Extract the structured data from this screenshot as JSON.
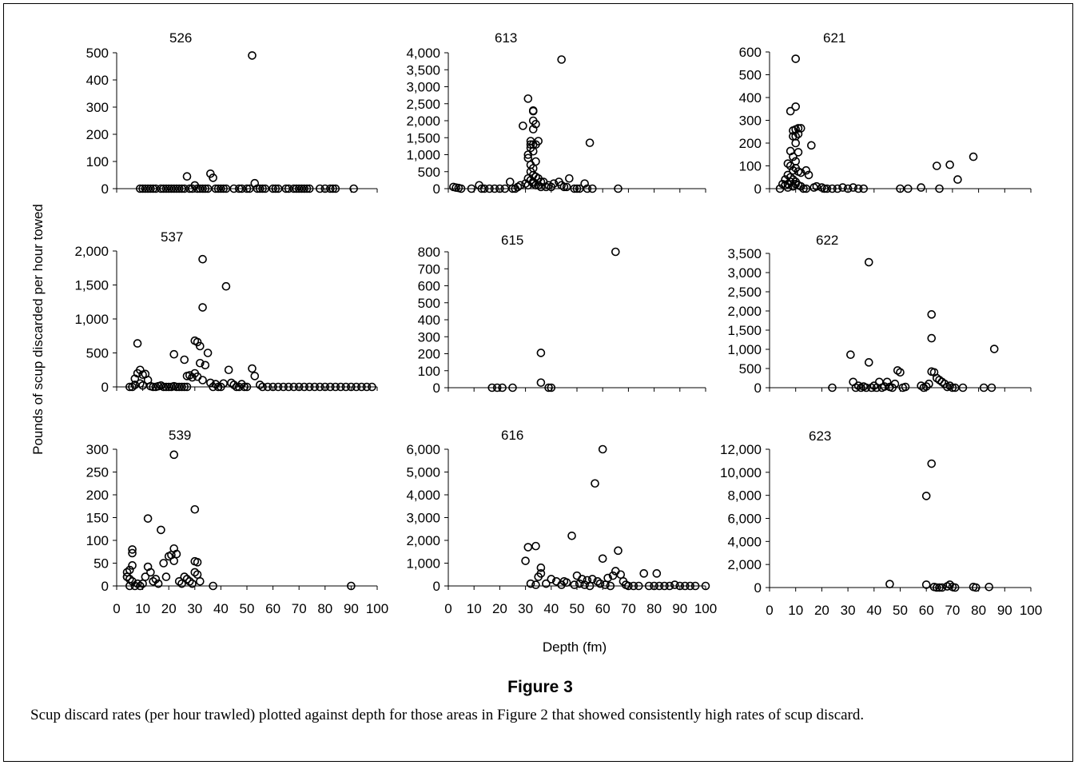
{
  "figure": {
    "ylabel": "Pounds of scup discarded per hour towed",
    "xlabel": "Depth (fm)",
    "title": "Figure 3",
    "caption": "Scup discard rates (per hour trawled) plotted against depth for those areas in Figure 2 that showed consistently high rates of scup discard."
  },
  "chart_data": [
    {
      "type": "scatter",
      "title": "526",
      "xlim": [
        0,
        100
      ],
      "ylim": [
        0,
        500
      ],
      "xticks": [
        0,
        10,
        20,
        30,
        40,
        50,
        60,
        70,
        80,
        90,
        100
      ],
      "yticks": [
        0,
        100,
        200,
        300,
        400,
        500
      ],
      "x": [
        52,
        27,
        36,
        37,
        30,
        53,
        9,
        10,
        11,
        12,
        13,
        14,
        15,
        17,
        18,
        19,
        20,
        21,
        22,
        23,
        24,
        25,
        26,
        28,
        29,
        31,
        32,
        33,
        34,
        35,
        38,
        39,
        40,
        41,
        42,
        45,
        47,
        48,
        50,
        51,
        54,
        55,
        56,
        57,
        60,
        61,
        62,
        65,
        66,
        68,
        69,
        70,
        71,
        72,
        73,
        74,
        78,
        80,
        82,
        83,
        84,
        91
      ],
      "y": [
        490,
        45,
        55,
        40,
        12,
        20,
        0,
        0,
        0,
        0,
        0,
        0,
        0,
        0,
        0,
        0,
        0,
        0,
        0,
        0,
        0,
        0,
        0,
        0,
        0,
        0,
        0,
        0,
        0,
        0,
        0,
        0,
        0,
        0,
        0,
        0,
        0,
        0,
        0,
        0,
        0,
        0,
        0,
        0,
        0,
        0,
        0,
        0,
        0,
        0,
        0,
        0,
        0,
        0,
        0,
        0,
        0,
        0,
        0,
        0,
        0,
        0
      ]
    },
    {
      "type": "scatter",
      "title": "613",
      "xlim": [
        0,
        100
      ],
      "ylim": [
        0,
        4000
      ],
      "xticks": [
        0,
        10,
        20,
        30,
        40,
        50,
        60,
        70,
        80,
        90,
        100
      ],
      "yticks": [
        0,
        500,
        1000,
        1500,
        2000,
        2500,
        3000,
        3500,
        4000
      ],
      "x": [
        44,
        31,
        33,
        33,
        33,
        33,
        29,
        32,
        34,
        33,
        35,
        32,
        32,
        34,
        31,
        33,
        31,
        32,
        34,
        33,
        32,
        33,
        34,
        31,
        35,
        32,
        33,
        33,
        34,
        31,
        36,
        55,
        53,
        47,
        43,
        44,
        45,
        46,
        41,
        39,
        37,
        38,
        35,
        36,
        40,
        30,
        28,
        27,
        26,
        25,
        24,
        2,
        3,
        4,
        5,
        9,
        12,
        13,
        14,
        16,
        18,
        20,
        22,
        49,
        50,
        51,
        54,
        56,
        66
      ],
      "y": [
        3800,
        2650,
        2300,
        2280,
        2000,
        1750,
        1850,
        1400,
        1900,
        1300,
        1400,
        1300,
        1200,
        1300,
        1000,
        1100,
        900,
        700,
        800,
        600,
        500,
        400,
        350,
        300,
        300,
        250,
        200,
        150,
        100,
        100,
        200,
        1350,
        150,
        300,
        200,
        100,
        50,
        50,
        150,
        100,
        200,
        50,
        100,
        50,
        50,
        150,
        100,
        50,
        0,
        0,
        200,
        50,
        30,
        20,
        0,
        0,
        100,
        0,
        0,
        0,
        0,
        0,
        0,
        0,
        0,
        0,
        0,
        0,
        0
      ]
    },
    {
      "type": "scatter",
      "title": "621",
      "xlim": [
        0,
        100
      ],
      "ylim": [
        0,
        600
      ],
      "xticks": [
        0,
        10,
        20,
        30,
        40,
        50,
        60,
        70,
        80,
        90,
        100
      ],
      "yticks": [
        0,
        100,
        200,
        300,
        400,
        500,
        600
      ],
      "x": [
        10,
        10,
        8,
        11,
        9,
        10,
        12,
        10,
        11,
        9,
        10,
        8,
        11,
        9,
        10,
        7,
        8,
        9,
        10,
        11,
        12,
        14,
        15,
        16,
        7,
        8,
        9,
        10,
        6,
        7,
        8,
        9,
        10,
        11,
        12,
        5,
        6,
        7,
        4,
        13,
        14,
        17,
        18,
        20,
        21,
        22,
        24,
        26,
        28,
        30,
        32,
        34,
        36,
        50,
        53,
        58,
        64,
        65,
        69,
        72,
        78
      ],
      "y": [
        570,
        360,
        340,
        265,
        255,
        260,
        265,
        230,
        240,
        230,
        200,
        165,
        160,
        140,
        120,
        110,
        100,
        80,
        90,
        75,
        70,
        80,
        60,
        190,
        60,
        50,
        40,
        30,
        40,
        20,
        30,
        10,
        20,
        15,
        10,
        20,
        15,
        5,
        0,
        0,
        0,
        5,
        10,
        5,
        0,
        0,
        0,
        0,
        5,
        0,
        5,
        0,
        0,
        0,
        0,
        5,
        100,
        0,
        105,
        40,
        140
      ]
    },
    {
      "type": "scatter",
      "title": "537",
      "xlim": [
        0,
        100
      ],
      "ylim": [
        0,
        2000
      ],
      "xticks": [
        0,
        10,
        20,
        30,
        40,
        50,
        60,
        70,
        80,
        90,
        100
      ],
      "yticks": [
        0,
        500,
        1000,
        1500,
        2000
      ],
      "x": [
        33,
        42,
        33,
        8,
        30,
        31,
        32,
        34,
        35,
        22,
        26,
        43,
        52,
        32,
        30,
        53,
        9,
        8,
        10,
        11,
        7,
        12,
        31,
        28,
        27,
        29,
        44,
        33,
        36,
        38,
        41,
        45,
        48,
        55,
        5,
        6,
        7,
        9,
        10,
        13,
        14,
        15,
        16,
        17,
        18,
        19,
        20,
        21,
        22,
        23,
        24,
        25,
        26,
        27,
        37,
        39,
        40,
        46,
        47,
        49,
        50,
        56,
        58,
        60,
        62,
        64,
        66,
        68,
        70,
        72,
        74,
        76,
        78,
        80,
        82,
        84,
        86,
        88,
        90,
        92,
        94,
        96,
        98
      ],
      "y": [
        1880,
        1480,
        1170,
        640,
        680,
        660,
        600,
        320,
        500,
        480,
        400,
        250,
        270,
        350,
        200,
        160,
        250,
        200,
        180,
        190,
        120,
        100,
        150,
        170,
        160,
        140,
        60,
        100,
        60,
        40,
        50,
        30,
        40,
        30,
        0,
        0,
        30,
        50,
        20,
        10,
        0,
        0,
        10,
        20,
        0,
        0,
        0,
        0,
        10,
        0,
        0,
        0,
        0,
        0,
        0,
        0,
        0,
        0,
        0,
        0,
        0,
        0,
        0,
        0,
        0,
        0,
        0,
        0,
        0,
        0,
        0,
        0,
        0,
        0,
        0,
        0,
        0,
        0,
        0,
        0,
        0,
        0,
        0
      ]
    },
    {
      "type": "scatter",
      "title": "615",
      "xlim": [
        0,
        100
      ],
      "ylim": [
        0,
        800
      ],
      "xticks": [
        0,
        10,
        20,
        30,
        40,
        50,
        60,
        70,
        80,
        90,
        100
      ],
      "yticks": [
        0,
        100,
        200,
        300,
        400,
        500,
        600,
        700,
        800
      ],
      "x": [
        65,
        36,
        36,
        17,
        19,
        21,
        25,
        39,
        40
      ],
      "y": [
        800,
        205,
        30,
        0,
        0,
        0,
        0,
        0,
        0
      ]
    },
    {
      "type": "scatter",
      "title": "622",
      "xlim": [
        0,
        100
      ],
      "ylim": [
        0,
        3500
      ],
      "xticks": [
        0,
        10,
        20,
        30,
        40,
        50,
        60,
        70,
        80,
        90,
        100
      ],
      "yticks": [
        0,
        500,
        1000,
        1500,
        2000,
        2500,
        3000,
        3500
      ],
      "x": [
        38,
        62,
        62,
        86,
        31,
        38,
        49,
        50,
        62,
        63,
        64,
        65,
        66,
        45,
        42,
        48,
        32,
        34,
        36,
        40,
        44,
        46,
        52,
        58,
        60,
        61,
        67,
        68,
        69,
        24,
        33,
        35,
        37,
        39,
        41,
        43,
        47,
        51,
        59,
        70,
        71,
        74,
        82,
        85
      ],
      "y": [
        3270,
        1910,
        1290,
        1010,
        860,
        660,
        450,
        400,
        420,
        400,
        250,
        200,
        150,
        150,
        150,
        100,
        150,
        50,
        30,
        50,
        30,
        20,
        20,
        50,
        30,
        100,
        100,
        20,
        50,
        0,
        0,
        0,
        0,
        0,
        0,
        0,
        0,
        0,
        0,
        0,
        0,
        0,
        0,
        0
      ]
    },
    {
      "type": "scatter",
      "title": "539",
      "xlim": [
        0,
        100
      ],
      "ylim": [
        0,
        300
      ],
      "xticks": [
        0,
        10,
        20,
        30,
        40,
        50,
        60,
        70,
        80,
        90,
        100
      ],
      "yticks": [
        0,
        50,
        100,
        150,
        200,
        250,
        300
      ],
      "x": [
        22,
        30,
        12,
        17,
        6,
        6,
        22,
        20,
        21,
        23,
        18,
        22,
        31,
        30,
        6,
        5,
        12,
        13,
        4,
        4,
        5,
        6,
        8,
        10,
        11,
        14,
        15,
        16,
        19,
        24,
        25,
        26,
        27,
        28,
        29,
        30,
        31,
        32,
        4,
        5,
        7,
        9,
        37,
        90
      ],
      "y": [
        288,
        168,
        148,
        123,
        80,
        72,
        82,
        65,
        68,
        70,
        50,
        55,
        52,
        54,
        45,
        35,
        42,
        30,
        30,
        20,
        15,
        10,
        5,
        5,
        20,
        10,
        15,
        5,
        20,
        10,
        5,
        20,
        15,
        10,
        5,
        30,
        25,
        10,
        20,
        0,
        0,
        0,
        0,
        0
      ]
    },
    {
      "type": "scatter",
      "title": "616",
      "xlim": [
        0,
        100
      ],
      "ylim": [
        0,
        6000
      ],
      "xticks": [
        0,
        10,
        20,
        30,
        40,
        50,
        60,
        70,
        80,
        90,
        100
      ],
      "yticks": [
        0,
        1000,
        2000,
        3000,
        4000,
        5000,
        6000
      ],
      "x": [
        60,
        57,
        48,
        31,
        34,
        66,
        60,
        30,
        36,
        76,
        81,
        65,
        36,
        35,
        40,
        42,
        45,
        50,
        52,
        54,
        56,
        58,
        62,
        64,
        67,
        68,
        32,
        34,
        38,
        44,
        46,
        49,
        51,
        53,
        55,
        59,
        61,
        63,
        69,
        70,
        72,
        74,
        78,
        80,
        82,
        84,
        86,
        88,
        90,
        92,
        94,
        96,
        100
      ],
      "y": [
        6000,
        4500,
        2200,
        1700,
        1750,
        1550,
        1200,
        1100,
        800,
        550,
        550,
        650,
        550,
        400,
        300,
        200,
        200,
        450,
        300,
        250,
        300,
        200,
        350,
        450,
        500,
        200,
        100,
        50,
        100,
        50,
        150,
        50,
        100,
        50,
        0,
        100,
        50,
        0,
        50,
        0,
        0,
        0,
        0,
        0,
        0,
        0,
        0,
        50,
        0,
        0,
        0,
        0,
        0
      ]
    },
    {
      "type": "scatter",
      "title": "623",
      "xlim": [
        0,
        100
      ],
      "ylim": [
        0,
        12000
      ],
      "xticks": [
        0,
        10,
        20,
        30,
        40,
        50,
        60,
        70,
        80,
        90,
        100
      ],
      "yticks": [
        0,
        2000,
        4000,
        6000,
        8000,
        10000,
        12000
      ],
      "x": [
        62,
        60,
        46,
        60,
        69,
        63,
        64,
        65,
        66,
        68,
        70,
        71,
        78,
        79,
        84
      ],
      "y": [
        10750,
        7950,
        300,
        250,
        250,
        50,
        0,
        0,
        0,
        100,
        50,
        0,
        50,
        0,
        50
      ]
    }
  ]
}
